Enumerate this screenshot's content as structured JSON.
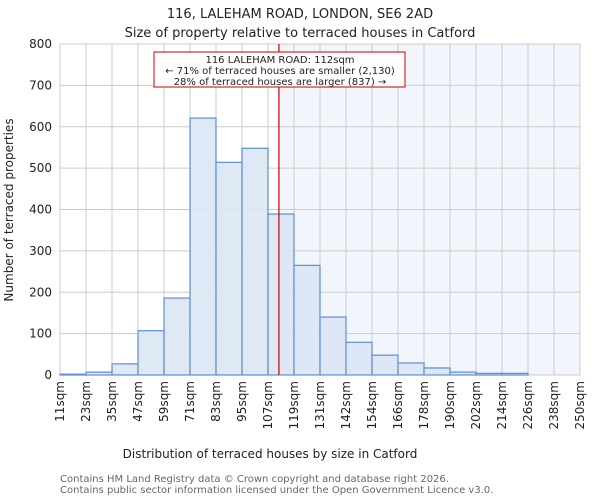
{
  "chart_data": {
    "type": "bar",
    "title": "116, LALEHAM ROAD, LONDON, SE6 2AD",
    "subtitle": "Size of property relative to terraced houses in Catford",
    "xlabel": "Distribution of terraced houses by size in Catford",
    "ylabel": "Number of terraced properties",
    "ylim": [
      0,
      800
    ],
    "yticks": [
      0,
      100,
      200,
      300,
      400,
      500,
      600,
      700,
      800
    ],
    "xtick_labels": [
      "11sqm",
      "23sqm",
      "35sqm",
      "47sqm",
      "59sqm",
      "71sqm",
      "83sqm",
      "95sqm",
      "107sqm",
      "119sqm",
      "131sqm",
      "142sqm",
      "154sqm",
      "166sqm",
      "178sqm",
      "190sqm",
      "202sqm",
      "214sqm",
      "226sqm",
      "238sqm",
      "250sqm"
    ],
    "values": [
      2,
      7,
      27,
      107,
      186,
      621,
      514,
      548,
      389,
      265,
      140,
      79,
      48,
      29,
      17,
      7,
      4,
      4,
      0,
      0
    ],
    "grid": true,
    "marker": {
      "value_sqm": 112,
      "bin_position": 8.42,
      "color": "#cc0000"
    },
    "annotation": {
      "line1": "116 LALEHAM ROAD: 112sqm",
      "line2": "← 71% of terraced houses are smaller (2,130)",
      "line3": "28% of terraced houses are larger (837) →"
    },
    "colors": {
      "bar_fill": "#dce6f4",
      "bar_edge": "#5b8fd6",
      "highlight_bg": "#f2f5fc",
      "grid": "#cccccc"
    }
  },
  "footer": {
    "line1": "Contains HM Land Registry data © Crown copyright and database right 2026.",
    "line2": "Contains public sector information licensed under the Open Government Licence v3.0."
  }
}
